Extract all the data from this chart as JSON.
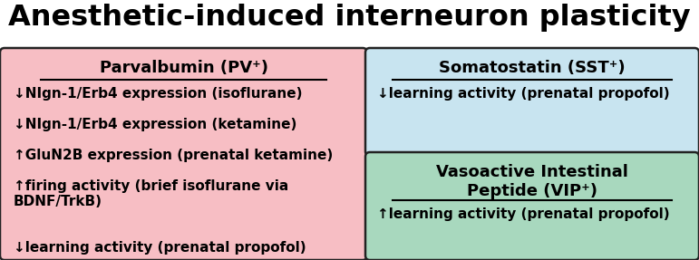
{
  "title": "Anesthetic-induced interneuron plasticity",
  "title_fontsize": 23,
  "title_fontweight": "bold",
  "bg_color": "#ffffff",
  "pv_box": {
    "label": "Parvalbumin (PV⁺)",
    "color": "#f7bec4",
    "items": [
      "↓NIgn-1/Erb4 expression (isoflurane)",
      "↓NIgn-1/Erb4 expression (ketamine)",
      "↑GluN2B expression (prenatal ketamine)",
      "↑firing activity (brief isoflurane via\nBDNF/TrkB)",
      "↓learning activity (prenatal propofol)"
    ]
  },
  "sst_box": {
    "label": "Somatostatin (SST⁺)",
    "color": "#c8e4f0",
    "items": [
      "↓learning activity (prenatal propofol)"
    ]
  },
  "vip_box": {
    "label": "Vasoactive Intestinal\nPeptide (VIP⁺)",
    "color": "#a8d8be",
    "items": [
      "↑learning activity (prenatal propofol)"
    ]
  },
  "border_color": "#222222",
  "text_fontsize": 11,
  "header_fontsize": 13,
  "text_fontweight": "bold",
  "header_fontweight": "bold"
}
